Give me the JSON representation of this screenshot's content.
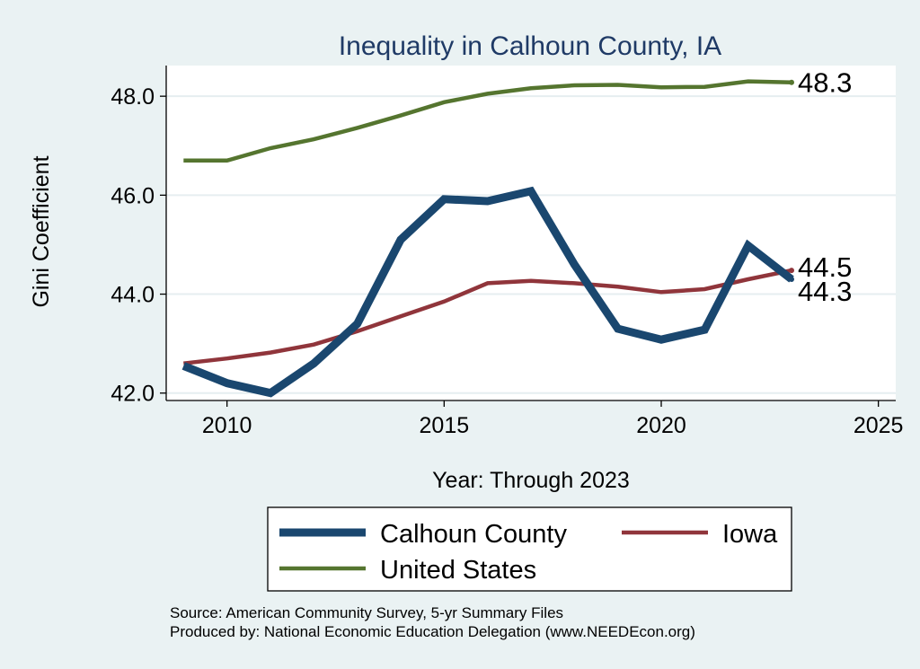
{
  "chart_data": {
    "type": "line",
    "title": "Inequality in Calhoun County, IA",
    "xlabel": "Year: Through 2023",
    "ylabel": "Gini Coefficient",
    "xlim": [
      2008.6,
      2025.4
    ],
    "ylim": [
      41.85,
      48.62
    ],
    "xticks": [
      2010,
      2015,
      2020,
      2025
    ],
    "yticks": [
      42.0,
      44.0,
      46.0,
      48.0
    ],
    "ytick_labels": [
      "42.0",
      "44.0",
      "46.0",
      "48.0"
    ],
    "grid": true,
    "x": [
      2009,
      2010,
      2011,
      2012,
      2013,
      2014,
      2015,
      2016,
      2017,
      2018,
      2019,
      2020,
      2021,
      2022,
      2023
    ],
    "series": [
      {
        "name": "Calhoun County",
        "color": "#1a476f",
        "width": "thick",
        "values": [
          42.55,
          42.2,
          42.0,
          42.6,
          43.4,
          45.1,
          45.92,
          45.88,
          46.08,
          44.6,
          43.3,
          43.08,
          43.28,
          44.98,
          44.3
        ],
        "end_label": "44.3"
      },
      {
        "name": "Iowa",
        "color": "#90353b",
        "width": "medium",
        "values": [
          42.6,
          42.7,
          42.82,
          42.98,
          43.25,
          43.55,
          43.85,
          44.22,
          44.27,
          44.22,
          44.15,
          44.04,
          44.1,
          44.3,
          44.48
        ],
        "end_label": "44.5"
      },
      {
        "name": "United States",
        "color": "#55752f",
        "width": "medium",
        "values": [
          46.7,
          46.7,
          46.95,
          47.13,
          47.36,
          47.61,
          47.88,
          48.05,
          48.16,
          48.22,
          48.23,
          48.18,
          48.19,
          48.3,
          48.28
        ],
        "end_label": "48.3"
      }
    ],
    "legend": {
      "placement": "bottom",
      "entries": [
        "Calhoun County",
        "Iowa",
        "United States"
      ]
    }
  },
  "notes": {
    "source": "Source: American Community Survey, 5-yr Summary Files",
    "produced_by": "Produced by: National Economic Education Delegation (www.NEEDEcon.org)"
  },
  "colors": {
    "background": "#eaf2f3",
    "plot_background": "#ffffff",
    "grid": "#e6eef0",
    "title": "#1f3a66",
    "axis": "#000000"
  }
}
